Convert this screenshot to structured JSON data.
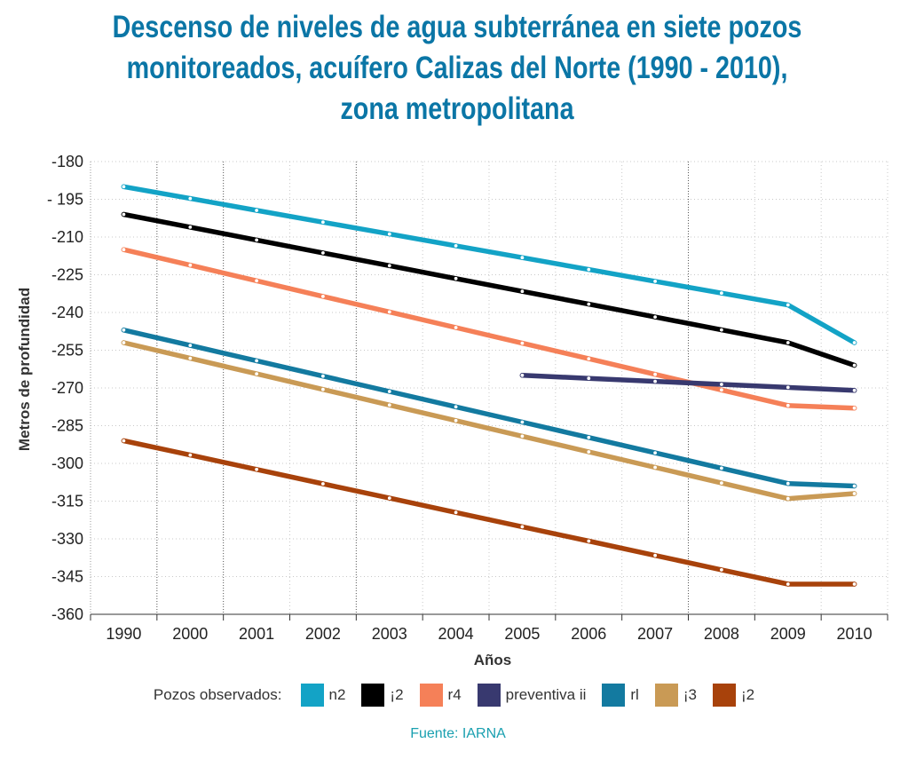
{
  "title_lines": [
    "Descenso de niveles de agua subterránea en siete pozos",
    "monitoreados, acuífero Calizas del Norte (1990 - 2010),",
    "zona metropolitana"
  ],
  "legend_title": "Pozos observados:",
  "source": "Fuente: IARNA",
  "colors": {
    "title": "#0b76a6",
    "source": "#1aa0b0"
  },
  "chart_data": {
    "type": "line",
    "title": "Descenso de niveles de agua subterránea en siete pozos monitoreados, acuífero Calizas del Norte (1990 - 2010), zona metropolitana",
    "xlabel": "Años",
    "ylabel": "Metros de profundidad",
    "categories": [
      "1990",
      "2000",
      "2001",
      "2002",
      "2003",
      "2004",
      "2005",
      "2006",
      "2007",
      "2008",
      "2009",
      "2010"
    ],
    "y_tick_labels": [
      "-180",
      "- 195",
      "-210",
      "-225",
      "-240",
      "-255",
      "-270",
      "-285",
      "-300",
      "-315",
      "-330",
      "-345",
      "-360"
    ],
    "ylim": [
      -360,
      -180
    ],
    "grid": true,
    "legend_position": "bottom",
    "series": [
      {
        "name": "n2",
        "color": "#13a3c6",
        "values": [
          -190,
          -194.7,
          -199.4,
          -204.1,
          -208.8,
          -213.5,
          -218.2,
          -222.9,
          -227.6,
          -232.3,
          -237,
          -252
        ]
      },
      {
        "name": "¡2",
        "color": "#000000",
        "values": [
          -201,
          -206.1,
          -211.2,
          -216.3,
          -221.4,
          -226.5,
          -231.6,
          -236.7,
          -241.8,
          -246.9,
          -252,
          -261
        ]
      },
      {
        "name": "r4",
        "color": "#f58058",
        "values": [
          -215,
          -221.2,
          -227.4,
          -233.6,
          -239.8,
          -246,
          -252.2,
          -258.4,
          -264.6,
          -270.8,
          -277,
          -278
        ]
      },
      {
        "name": "preventiva ii",
        "color": "#38396f",
        "values": [
          null,
          null,
          null,
          null,
          null,
          null,
          -265,
          -266.2,
          -267.4,
          -268.6,
          -269.8,
          -271
        ]
      },
      {
        "name": "rl",
        "color": "#137aa0",
        "values": [
          -247,
          -253.1,
          -259.2,
          -265.3,
          -271.4,
          -277.5,
          -283.6,
          -289.7,
          -295.8,
          -301.9,
          -308,
          -309
        ]
      },
      {
        "name": "¡3",
        "color": "#c99a55",
        "values": [
          -252,
          -258.2,
          -264.4,
          -270.6,
          -276.8,
          -283,
          -289.2,
          -295.4,
          -301.6,
          -307.8,
          -314,
          -312
        ]
      },
      {
        "name": "¡2",
        "color": "#a8420b",
        "values": [
          -291,
          -296.7,
          -302.4,
          -308.1,
          -313.8,
          -319.5,
          -325.2,
          -330.9,
          -336.6,
          -342.3,
          -348,
          -348
        ]
      }
    ]
  }
}
